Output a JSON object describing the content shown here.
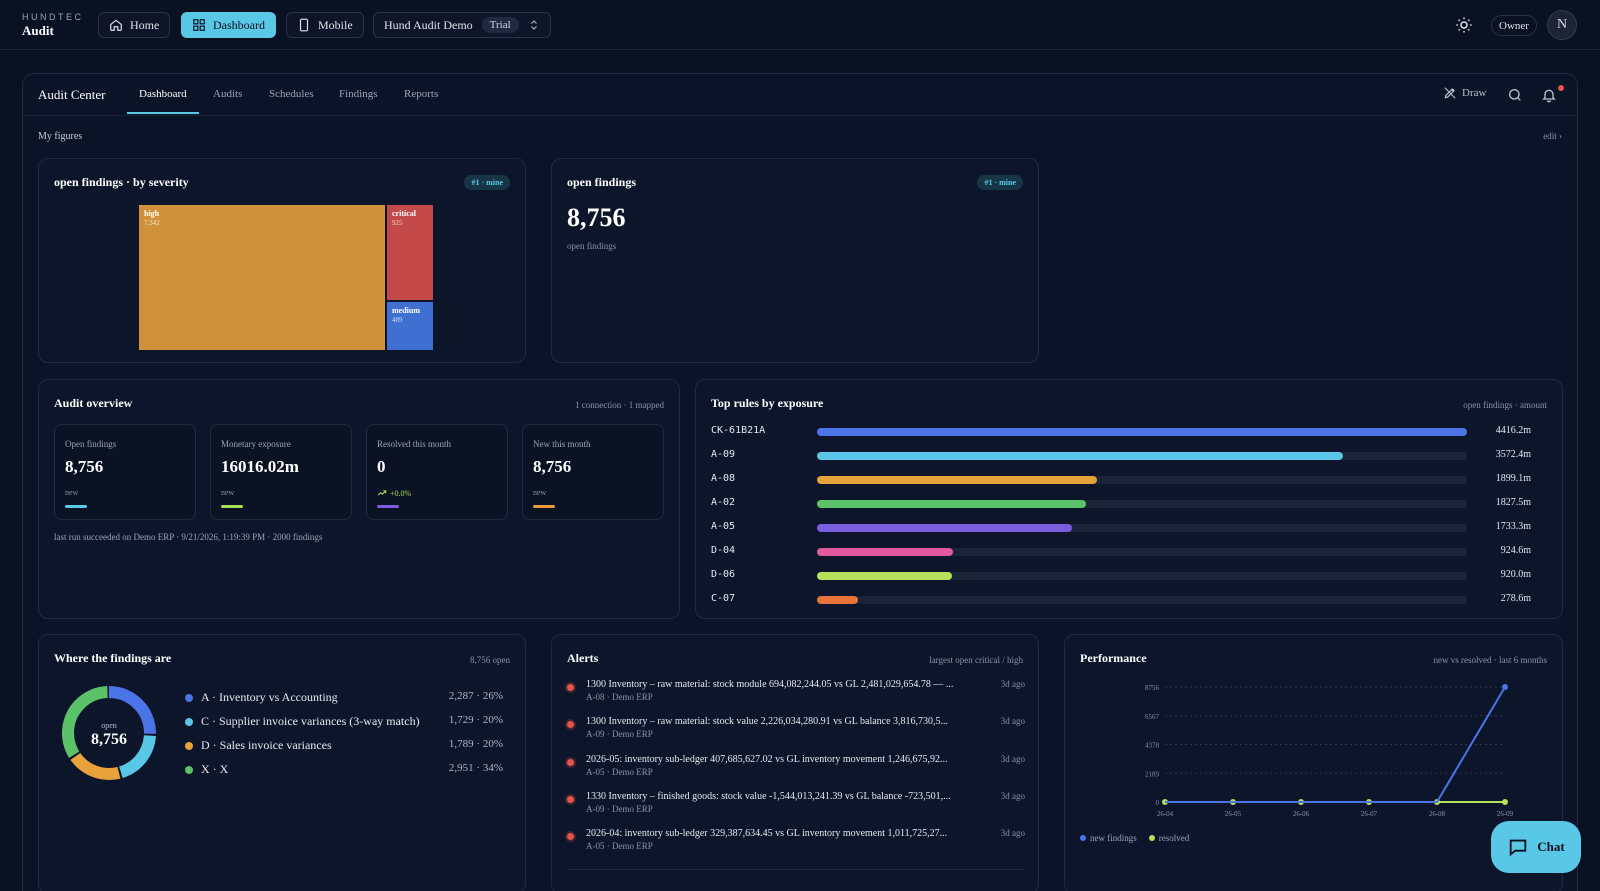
{
  "brand": {
    "top": "HUNDTEC",
    "bottom": "Audit"
  },
  "topnav": {
    "home": "Home",
    "dashboard": "Dashboard",
    "mobile": "Mobile",
    "workspace": "Hund Audit Demo",
    "workspace_badge": "Trial",
    "owner": "Owner",
    "avatar": "N"
  },
  "subnav": {
    "title": "Audit Center",
    "tabs": [
      "Dashboard",
      "Audits",
      "Schedules",
      "Findings",
      "Reports"
    ],
    "draw": "Draw"
  },
  "figures": {
    "label": "My figures",
    "edit": "edit ›"
  },
  "severity_card": {
    "title": "open findings · by severity",
    "badge": "#1 · mine",
    "cells": [
      {
        "label": "high",
        "value": "7,342",
        "color": "#cf923a"
      },
      {
        "label": "critical",
        "value": "925",
        "color": "#c44a4a"
      },
      {
        "label": "medium",
        "value": "489",
        "color": "#3f6fd1"
      }
    ]
  },
  "open_card": {
    "title": "open findings",
    "badge": "#1 · mine",
    "value": "8,756",
    "caption": "open findings"
  },
  "overview": {
    "title": "Audit overview",
    "sub": "1 connection · 1 mapped",
    "tiles": [
      {
        "label": "Open findings",
        "value": "8,756",
        "note": "new",
        "color": "#59c8e6"
      },
      {
        "label": "Monetary exposure",
        "value": "16016.02m",
        "note": "new",
        "color": "#a6e05a"
      },
      {
        "label": "Resolved this month",
        "value": "0",
        "note": "+0.0%",
        "color": "#7c5de0"
      },
      {
        "label": "New this month",
        "value": "8,756",
        "note": "new",
        "color": "#e89a3c"
      }
    ],
    "footer": "last run succeeded on Demo ERP · 9/21/2026, 1:19:39 PM · 2000 findings"
  },
  "top_rules": {
    "title": "Top rules by exposure",
    "sub": "open findings · amount",
    "rows": [
      {
        "name": "CK-61B21A",
        "amount": "4416.2m",
        "value": 4416.2,
        "color": "#4b74e8"
      },
      {
        "name": "A-09",
        "amount": "3572.4m",
        "value": 3572.4,
        "color": "#59c8e6"
      },
      {
        "name": "A-08",
        "amount": "1899.1m",
        "value": 1899.1,
        "color": "#e8a23c"
      },
      {
        "name": "A-02",
        "amount": "1827.5m",
        "value": 1827.5,
        "color": "#5cc26a"
      },
      {
        "name": "A-05",
        "amount": "1733.3m",
        "value": 1733.3,
        "color": "#7c5de0"
      },
      {
        "name": "D-04",
        "amount": "924.6m",
        "value": 924.6,
        "color": "#e05a9c"
      },
      {
        "name": "D-06",
        "amount": "920.0m",
        "value": 920.0,
        "color": "#b5e05a"
      },
      {
        "name": "C-07",
        "amount": "278.6m",
        "value": 278.6,
        "color": "#e8743c"
      }
    ]
  },
  "where": {
    "title": "Where the findings are",
    "sub": "8,756 open",
    "center_label": "open",
    "center_value": "8,756",
    "items": [
      {
        "name": "A · Inventory vs Accounting",
        "value": "2,287 · 26%",
        "pct": 26,
        "color": "#4b74e8"
      },
      {
        "name": "C · Supplier invoice variances (3-way match)",
        "value": "1,729 · 20%",
        "pct": 20,
        "color": "#59c8e6"
      },
      {
        "name": "D · Sales invoice variances",
        "value": "1,789 · 20%",
        "pct": 20,
        "color": "#e8a23c"
      },
      {
        "name": "X · X",
        "value": "2,951 · 34%",
        "pct": 34,
        "color": "#5cc26a"
      }
    ]
  },
  "alerts": {
    "title": "Alerts",
    "sub": "largest open critical / high",
    "items": [
      {
        "text": "1300 Inventory – raw material: stock module 694,082,244.05 vs GL 2,481,029,654.78 — ...",
        "sub": "A-08 · Demo ERP",
        "time": "3d ago"
      },
      {
        "text": "1300 Inventory – raw material: stock value 2,226,034,280.91 vs GL balance 3,816,730,5...",
        "sub": "A-09 · Demo ERP",
        "time": "3d ago"
      },
      {
        "text": "2026-05: inventory sub-ledger 407,685,627.02 vs GL inventory movement 1,246,675,92...",
        "sub": "A-05 · Demo ERP",
        "time": "3d ago"
      },
      {
        "text": "1330 Inventory – finished goods: stock value -1,544,013,241.39 vs GL balance -723,501,...",
        "sub": "A-09 · Demo ERP",
        "time": "3d ago"
      },
      {
        "text": "2026-04: inventory sub-ledger 329,387,634.45 vs GL inventory movement 1,011,725,27...",
        "sub": "A-05 · Demo ERP",
        "time": "3d ago"
      }
    ]
  },
  "performance": {
    "title": "Performance",
    "sub": "new vs resolved · last 6 months",
    "legend": [
      "new findings",
      "resolved"
    ],
    "colors": {
      "new": "#4b74e8",
      "resolved": "#b5e05a"
    }
  },
  "chart_data": {
    "type": "line",
    "x": [
      "26-04",
      "26-05",
      "26-06",
      "26-07",
      "26-08",
      "26-09"
    ],
    "yticks": [
      "0",
      "2189",
      "4378",
      "6567",
      "8756"
    ],
    "ylim": [
      0,
      8756
    ],
    "series": [
      {
        "name": "new findings",
        "values": [
          0,
          0,
          0,
          0,
          0,
          8756
        ]
      },
      {
        "name": "resolved",
        "values": [
          0,
          0,
          0,
          0,
          0,
          0
        ]
      }
    ]
  },
  "chat": {
    "label": "Chat"
  }
}
